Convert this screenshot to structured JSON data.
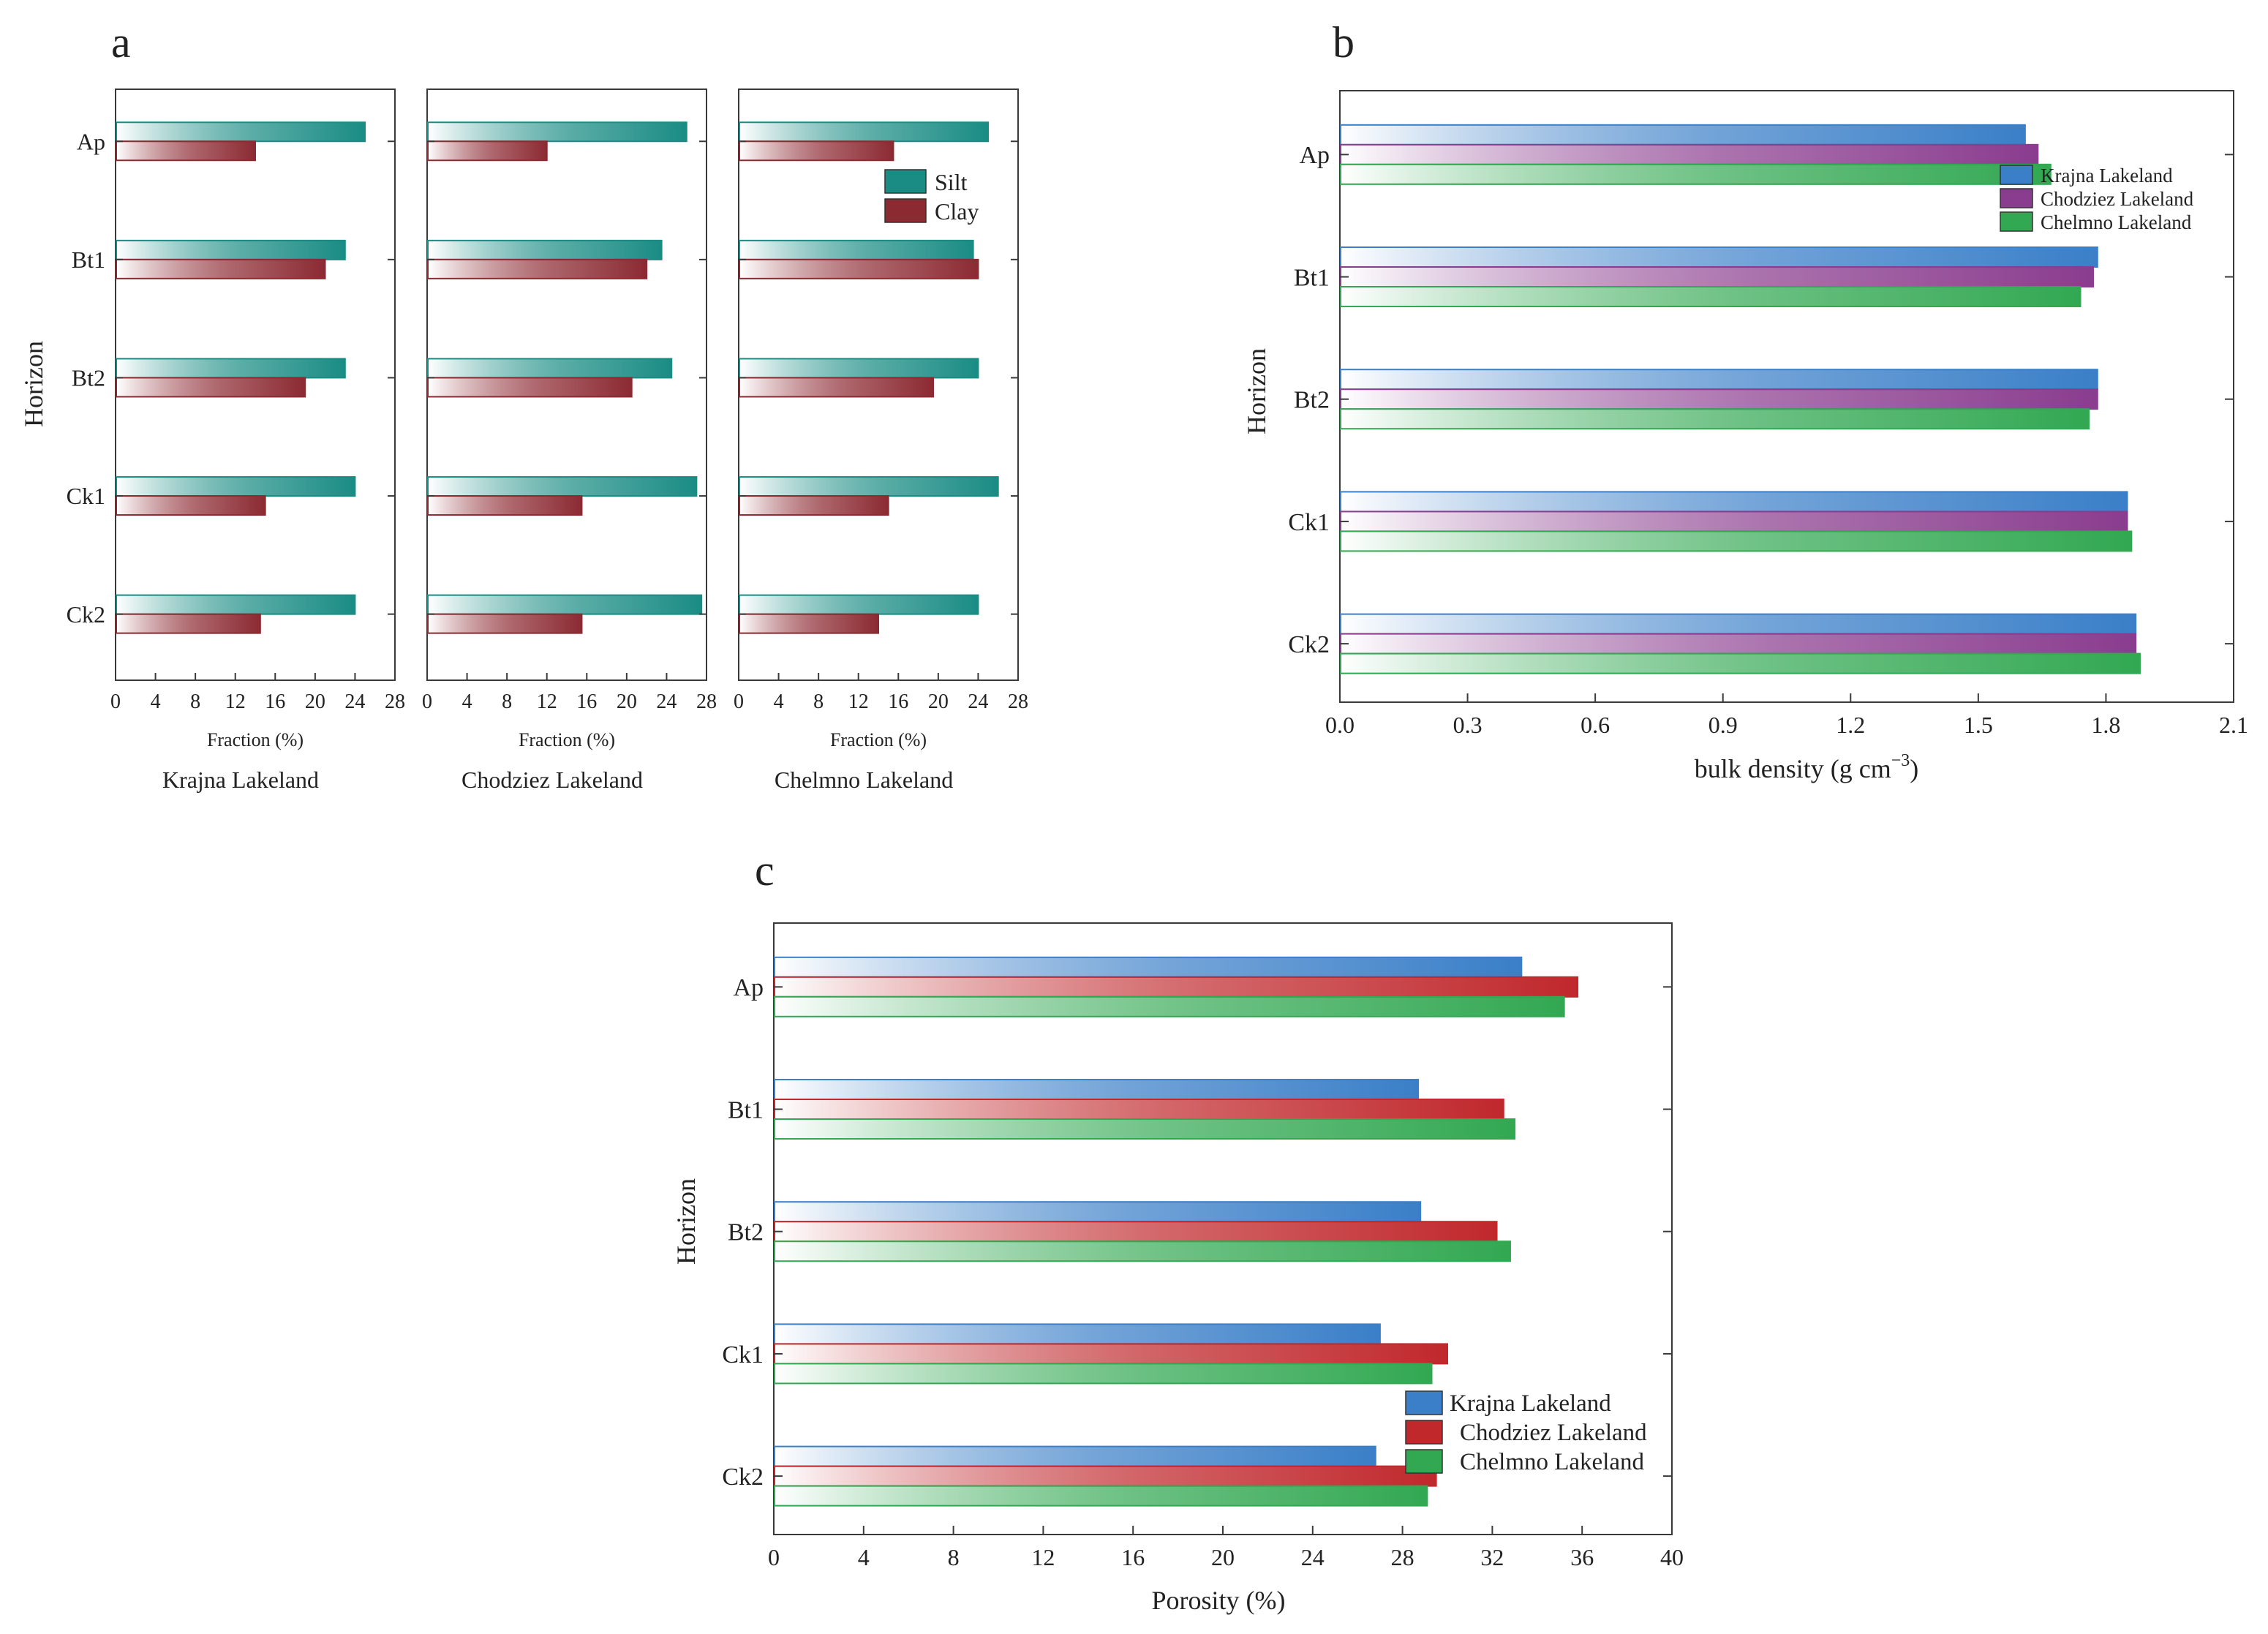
{
  "horizons": [
    "Ap",
    "Bt1",
    "Bt2",
    "Ck1",
    "Ck2"
  ],
  "colors": {
    "silt": "#1a8c84",
    "clay": "#8c2a32",
    "krajna": "#3a7fc8",
    "chodziez_b": "#8a3c8e",
    "chodziez_c": "#c0282c",
    "chelmno": "#32a852",
    "frame": "#3a3a3a"
  },
  "chart_data": [
    {
      "id": "a",
      "type": "bar",
      "orientation": "horizontal",
      "panel_label": "a",
      "ylabel": "Horizon",
      "xlabel": "Fraction (%)",
      "xlim": [
        0,
        28
      ],
      "xticks": [
        "0",
        "4",
        "8",
        "12",
        "16",
        "20",
        "24",
        "28"
      ],
      "legend": [
        {
          "name": "Silt",
          "color": "#1a8c84"
        },
        {
          "name": "Clay",
          "color": "#8c2a32"
        }
      ],
      "legend_position": "top-right of third subplot",
      "subplots": [
        {
          "title": "Krajna Lakeland",
          "categories": [
            "Ap",
            "Bt1",
            "Bt2",
            "Ck1",
            "Ck2"
          ],
          "series": [
            {
              "name": "Silt",
              "values": [
                25,
                23,
                23,
                24,
                24
              ]
            },
            {
              "name": "Clay",
              "values": [
                14,
                21,
                19,
                15,
                14.5
              ]
            }
          ]
        },
        {
          "title": "Chodziez Lakeland",
          "categories": [
            "Ap",
            "Bt1",
            "Bt2",
            "Ck1",
            "Ck2"
          ],
          "series": [
            {
              "name": "Silt",
              "values": [
                26,
                23.5,
                24.5,
                27,
                27.5
              ]
            },
            {
              "name": "Clay",
              "values": [
                12,
                22,
                20.5,
                15.5,
                15.5
              ]
            }
          ]
        },
        {
          "title": "Chelmno Lakeland",
          "categories": [
            "Ap",
            "Bt1",
            "Bt2",
            "Ck1",
            "Ck2"
          ],
          "series": [
            {
              "name": "Silt",
              "values": [
                25,
                23.5,
                24,
                26,
                24
              ]
            },
            {
              "name": "Clay",
              "values": [
                15.5,
                24,
                19.5,
                15,
                14
              ]
            }
          ]
        }
      ]
    },
    {
      "id": "b",
      "type": "bar",
      "orientation": "horizontal",
      "panel_label": "b",
      "ylabel": "Horizon",
      "xlabel_main": "bulk density (g cm",
      "xlabel_sup": "−3",
      "xlabel_end": ")",
      "xlim": [
        0,
        2.1
      ],
      "xticks": [
        "0.0",
        "0.3",
        "0.6",
        "0.9",
        "1.2",
        "1.5",
        "1.8",
        "2.1"
      ],
      "categories": [
        "Ap",
        "Bt1",
        "Bt2",
        "Ck1",
        "Ck2"
      ],
      "legend_position": "top-right",
      "series": [
        {
          "name": "Krajna Lakeland",
          "color": "#3a7fc8",
          "values": [
            1.61,
            1.78,
            1.78,
            1.85,
            1.87
          ]
        },
        {
          "name": "Chodziez Lakeland",
          "color": "#8a3c8e",
          "values": [
            1.64,
            1.77,
            1.78,
            1.85,
            1.87
          ]
        },
        {
          "name": "Chelmno Lakeland",
          "color": "#32a852",
          "values": [
            1.67,
            1.74,
            1.76,
            1.86,
            1.88
          ]
        }
      ]
    },
    {
      "id": "c",
      "type": "bar",
      "orientation": "horizontal",
      "panel_label": "c",
      "ylabel": "Horizon",
      "xlabel": "Porosity (%)",
      "xlim": [
        0,
        40
      ],
      "xticks": [
        "0",
        "4",
        "8",
        "12",
        "16",
        "20",
        "24",
        "28",
        "32",
        "36",
        "40"
      ],
      "categories": [
        "Ap",
        "Bt1",
        "Bt2",
        "Ck1",
        "Ck2"
      ],
      "legend_position": "bottom-right",
      "series": [
        {
          "name": "Krajna Lakeland",
          "color": "#3a7fc8",
          "values": [
            33.3,
            28.7,
            28.8,
            27.0,
            26.8
          ]
        },
        {
          "name": "Chodziez Lakeland",
          "color": "#c0282c",
          "values": [
            35.8,
            32.5,
            32.2,
            30.0,
            29.5
          ]
        },
        {
          "name": "Chelmno Lakeland",
          "color": "#32a852",
          "values": [
            35.2,
            33.0,
            32.8,
            29.3,
            29.1
          ]
        }
      ]
    }
  ]
}
